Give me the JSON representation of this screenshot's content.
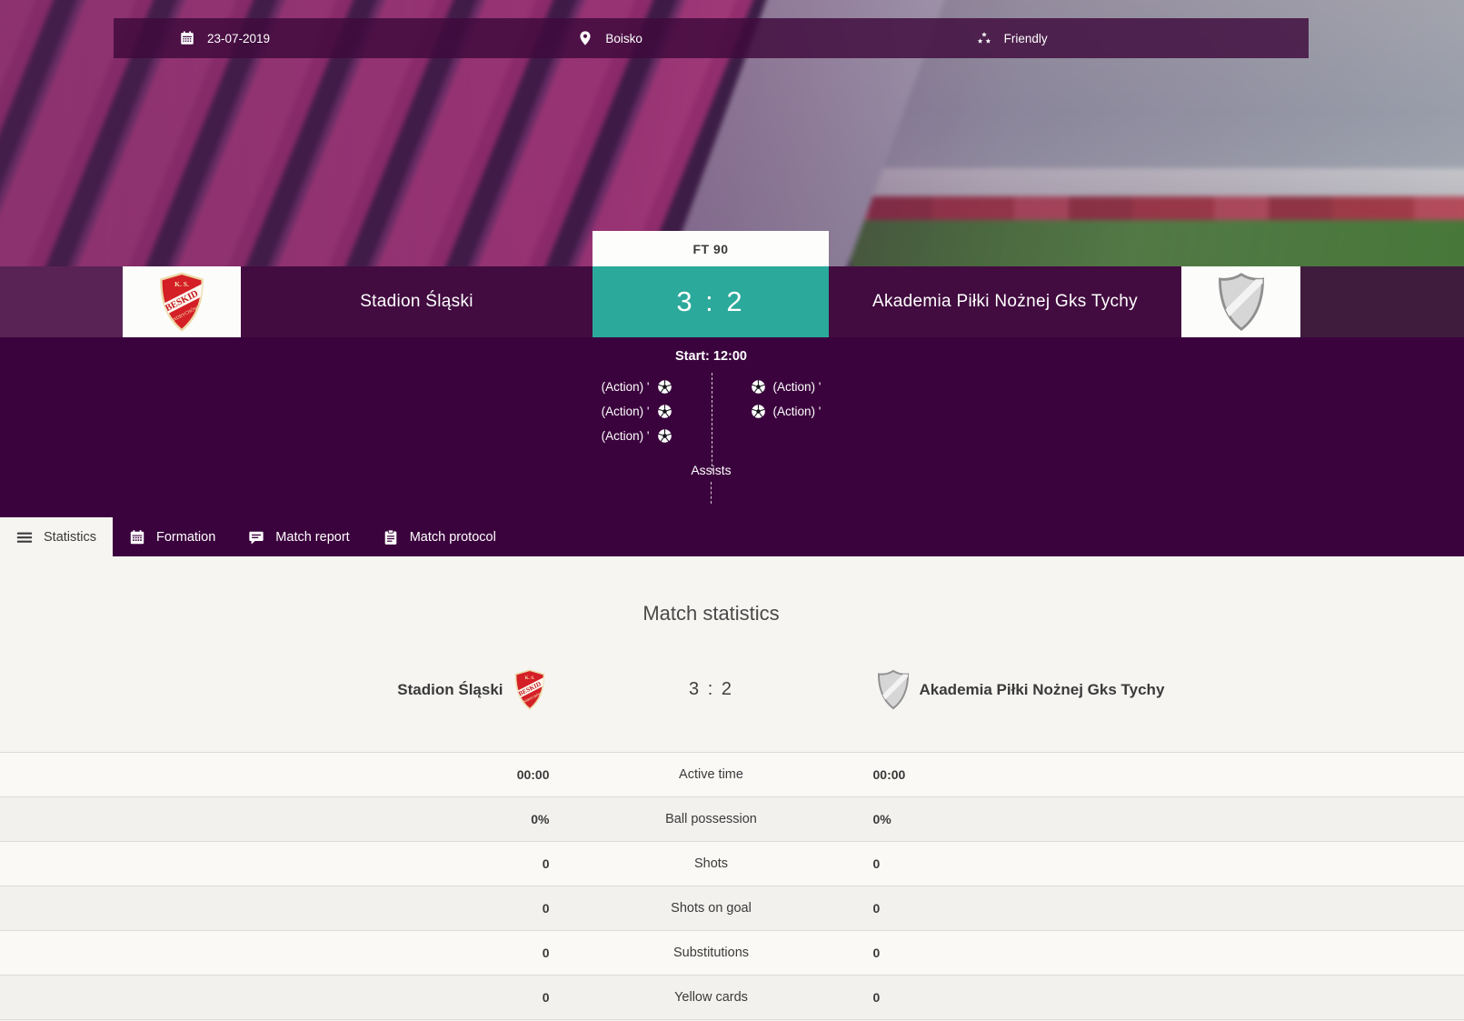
{
  "topbar": {
    "date": "23-07-2019",
    "venue": "Boisko",
    "match_type": "Friendly"
  },
  "hero": {
    "status": "FT 90",
    "score": "3 : 2",
    "home_team": "Stadion Śląski",
    "away_team": "Akademia Piłki Nożnej Gks Tychy",
    "start_label": "Start: 12:00",
    "assists_label": "Assists",
    "home_actions": [
      "(Action) '",
      "(Action) '",
      "(Action) '"
    ],
    "away_actions": [
      "(Action) '",
      "(Action) '"
    ]
  },
  "tabs": [
    {
      "label": "Statistics",
      "icon": "menu-icon",
      "active": true
    },
    {
      "label": "Formation",
      "icon": "calendar-grid-icon",
      "active": false
    },
    {
      "label": "Match report",
      "icon": "chat-icon",
      "active": false
    },
    {
      "label": "Match protocol",
      "icon": "clipboard-icon",
      "active": false
    }
  ],
  "statistics": {
    "title": "Match statistics",
    "home_team": "Stadion Śląski",
    "away_team": "Akademia Piłki Nożnej Gks Tychy",
    "score": "3 : 2",
    "rows": [
      {
        "home": "00:00",
        "label": "Active time",
        "away": "00:00"
      },
      {
        "home": "0%",
        "label": "Ball possession",
        "away": "0%"
      },
      {
        "home": "0",
        "label": "Shots",
        "away": "0"
      },
      {
        "home": "0",
        "label": "Shots on goal",
        "away": "0"
      },
      {
        "home": "0",
        "label": "Substitutions",
        "away": "0"
      },
      {
        "home": "0",
        "label": "Yellow cards",
        "away": "0"
      }
    ]
  },
  "colors": {
    "accent_teal": "#2ba99b",
    "purple_dark": "#3b033d",
    "purple_strip": "#420c40"
  }
}
